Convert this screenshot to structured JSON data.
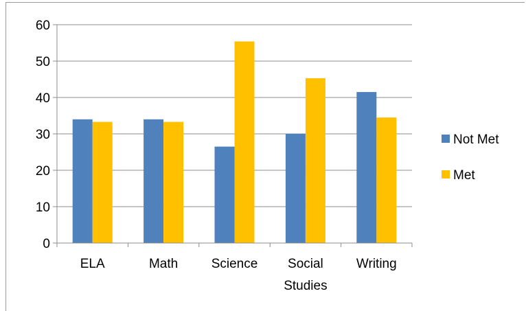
{
  "chart_data": {
    "type": "bar",
    "categories": [
      [
        "ELA"
      ],
      [
        "Math"
      ],
      [
        "Science"
      ],
      [
        "Social",
        "Studies"
      ],
      [
        "Writing"
      ]
    ],
    "series": [
      {
        "name": "Not Met",
        "color": "#4f81bd",
        "values": [
          34,
          34,
          26.5,
          30,
          41.5
        ]
      },
      {
        "name": "Met",
        "color": "#ffc000",
        "values": [
          33.3,
          33.3,
          55.4,
          45.3,
          34.5
        ]
      }
    ],
    "ylim": [
      0,
      60
    ],
    "yticks": [
      0,
      10,
      20,
      30,
      40,
      50,
      60
    ],
    "grid": true,
    "legend": "right"
  }
}
